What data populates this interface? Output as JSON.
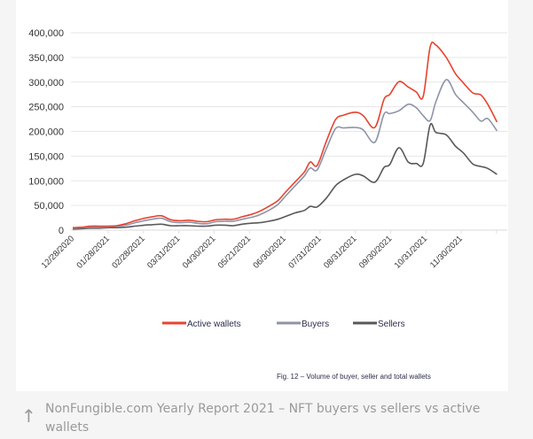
{
  "chart_data": {
    "type": "line",
    "title": "",
    "xlabel": "",
    "ylabel": "",
    "ylim": [
      0,
      400000
    ],
    "yticks": [
      0,
      50000,
      100000,
      150000,
      200000,
      250000,
      300000,
      350000,
      400000
    ],
    "ytick_labels": [
      "0",
      "50,000",
      "100,000",
      "150,000",
      "200,000",
      "250,000",
      "300,000",
      "350,000",
      "400,000"
    ],
    "xtick_labels": [
      "12/28/2020",
      "01/28/2021",
      "02/28/2021",
      "03/31/2021",
      "04/30/2021",
      "05/21/2021",
      "06/30/2021",
      "07/31/2021",
      "08/31/2021",
      "09/30/2021",
      "10/31/2021",
      "11/30/2021"
    ],
    "x_unit": "days since 12/28/2020",
    "x": [
      0,
      8,
      15,
      23,
      31,
      38,
      46,
      54,
      62,
      69,
      77,
      85,
      93,
      101,
      108,
      116,
      124,
      132,
      139,
      147,
      155,
      162,
      170,
      178,
      185,
      193,
      201,
      206,
      212,
      220,
      228,
      235,
      245,
      252,
      262,
      270,
      275,
      283,
      291,
      298,
      304,
      310,
      315,
      324,
      332,
      339,
      347,
      354,
      360,
      368
    ],
    "grid": true,
    "legend_position": "bottom",
    "series": [
      {
        "name": "Active wallets",
        "color": "#e8432e",
        "values": [
          5000,
          6000,
          8000,
          8000,
          8000,
          9000,
          13000,
          19000,
          24000,
          27000,
          29000,
          21000,
          19000,
          20000,
          18000,
          17000,
          21000,
          22000,
          22000,
          27000,
          32000,
          38000,
          48000,
          60000,
          78000,
          98000,
          118000,
          138000,
          131000,
          180000,
          224000,
          233000,
          239000,
          232000,
          208000,
          265000,
          275000,
          301000,
          290000,
          280000,
          271000,
          371000,
          375000,
          350000,
          317000,
          298000,
          278000,
          274000,
          255000,
          219000
        ]
      },
      {
        "name": "Buyers",
        "color": "#8e93a8",
        "values": [
          4000,
          5000,
          6000,
          6000,
          7000,
          8000,
          10000,
          15000,
          19000,
          22000,
          24000,
          17000,
          15000,
          16000,
          14000,
          13000,
          17000,
          18000,
          18000,
          22000,
          26000,
          31000,
          40000,
          52000,
          70000,
          90000,
          110000,
          126000,
          122000,
          165000,
          206000,
          207000,
          208000,
          203000,
          178000,
          235000,
          236000,
          242000,
          255000,
          248000,
          232000,
          222000,
          260000,
          305000,
          275000,
          258000,
          239000,
          221000,
          226000,
          201000
        ]
      },
      {
        "name": "Sellers",
        "color": "#58585a",
        "values": [
          2000,
          3000,
          4000,
          4000,
          5000,
          5000,
          6000,
          8000,
          10000,
          11000,
          12000,
          9000,
          9000,
          9000,
          8000,
          8000,
          10000,
          10000,
          9000,
          12000,
          14000,
          15000,
          18000,
          22000,
          28000,
          35000,
          40000,
          48000,
          47000,
          65000,
          90000,
          102000,
          113000,
          110000,
          97000,
          127000,
          133000,
          167000,
          138000,
          135000,
          135000,
          213000,
          198000,
          193000,
          170000,
          156000,
          134000,
          129000,
          125000,
          113000
        ]
      }
    ],
    "annotation": "Fig. 12 – Volume of buyer, seller and total wallets"
  },
  "caption": {
    "icon": "arrow-up-icon",
    "text": "NonFungible.com Yearly Report 2021 – NFT buyers vs sellers vs active wallets"
  }
}
